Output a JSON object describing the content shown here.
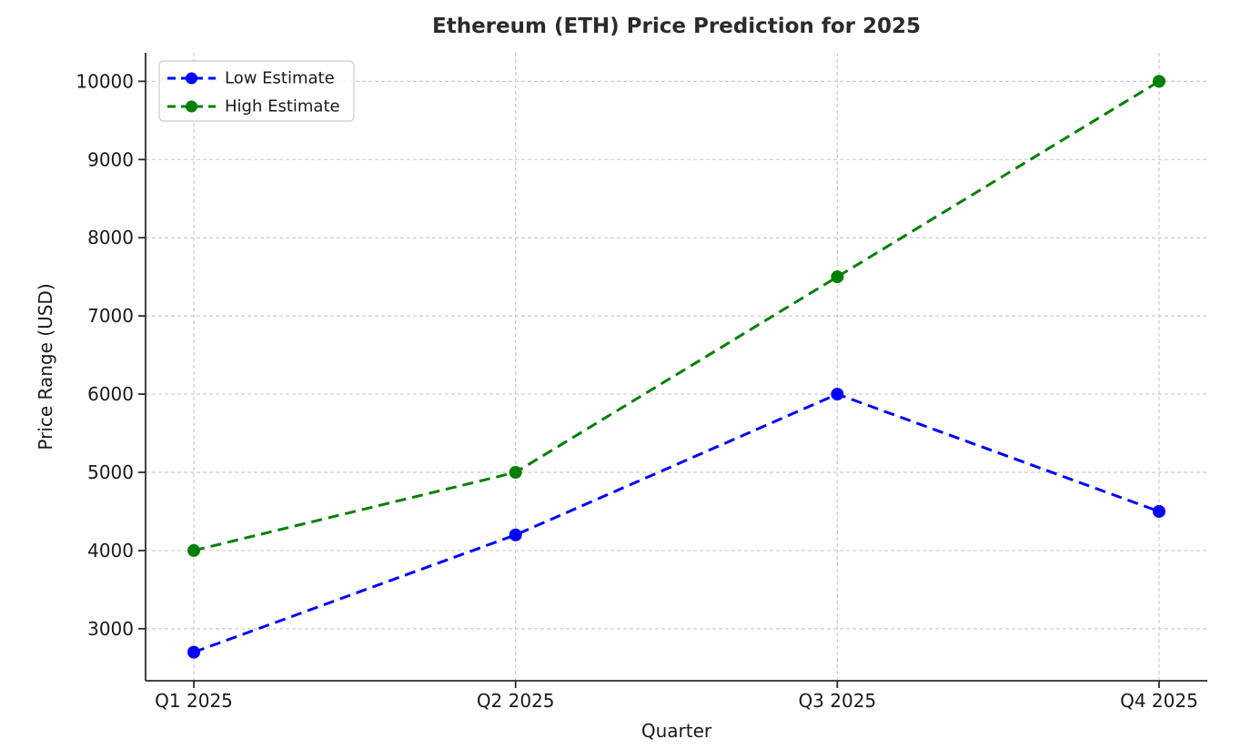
{
  "page": {
    "background": "#ffffff"
  },
  "chart_data": {
    "type": "line",
    "title": "Ethereum (ETH) Price Prediction for 2025",
    "xlabel": "Quarter",
    "ylabel": "Price Range (USD)",
    "categories": [
      "Q1 2025",
      "Q2 2025",
      "Q3 2025",
      "Q4 2025"
    ],
    "series": [
      {
        "name": "Low Estimate",
        "color": "#0000ff",
        "values": [
          2700,
          4200,
          6000,
          4500
        ],
        "line_style": "dashed",
        "marker": "circle"
      },
      {
        "name": "High Estimate",
        "color": "#008000",
        "values": [
          4000,
          5000,
          7500,
          10000
        ],
        "line_style": "dashed",
        "marker": "circle"
      }
    ],
    "y_ticks": [
      3000,
      4000,
      5000,
      6000,
      7000,
      8000,
      9000,
      10000
    ],
    "ylim": [
      2335,
      10365
    ],
    "grid": true,
    "grid_style": "dashed",
    "legend_position": "upper-left",
    "colors": {
      "grid": "#cccccc",
      "spine": "#2b2b2b",
      "text": "#1a1a1a",
      "title": "#2b2b2b"
    }
  }
}
